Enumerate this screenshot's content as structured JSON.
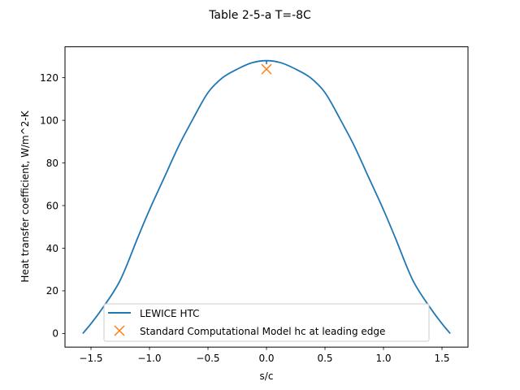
{
  "chart_data": {
    "type": "line",
    "title": "Table 2-5-a T=-8C",
    "xlabel": "s/c",
    "ylabel": "Heat transfer coefficient, W/m^2-K",
    "xlim": [
      -1.73,
      1.73
    ],
    "ylim": [
      -6,
      135
    ],
    "grid": false,
    "legend_position": "lower center",
    "x_ticks": [
      -1.5,
      -1.0,
      -0.5,
      0.0,
      0.5,
      1.0,
      1.5
    ],
    "x_tick_labels": [
      "−1.5",
      "−1.0",
      "−0.5",
      "0.0",
      "0.5",
      "1.0",
      "1.5"
    ],
    "y_ticks": [
      0,
      20,
      40,
      60,
      80,
      100,
      120
    ],
    "y_tick_labels": [
      "0",
      "20",
      "40",
      "60",
      "80",
      "100",
      "120"
    ],
    "series": [
      {
        "name": "LEWICE HTC",
        "kind": "line",
        "color": "#1f77b4",
        "x": [
          -1.57,
          -1.5,
          -1.4,
          -1.25,
          -1.1,
          -1.0,
          -0.875,
          -0.75,
          -0.625,
          -0.5,
          -0.375,
          -0.25,
          -0.125,
          0.0,
          0.125,
          0.25,
          0.375,
          0.5,
          0.625,
          0.75,
          0.875,
          1.0,
          1.1,
          1.25,
          1.4,
          1.5,
          1.57
        ],
        "y": [
          0,
          4.6,
          12,
          25,
          45,
          58,
          73,
          88,
          101,
          113,
          120,
          124,
          127,
          128,
          127,
          124,
          120,
          113,
          101,
          88,
          73,
          58,
          45,
          25,
          12,
          4.6,
          0
        ]
      },
      {
        "name": "Standard Computational Model hc at leading edge",
        "kind": "marker",
        "marker": "x",
        "color": "#ff7f0e",
        "x": [
          0.0
        ],
        "y": [
          124
        ]
      }
    ]
  },
  "legend": {
    "items": [
      {
        "label": "LEWICE HTC"
      },
      {
        "label": "Standard Computational Model hc at leading edge"
      }
    ]
  }
}
